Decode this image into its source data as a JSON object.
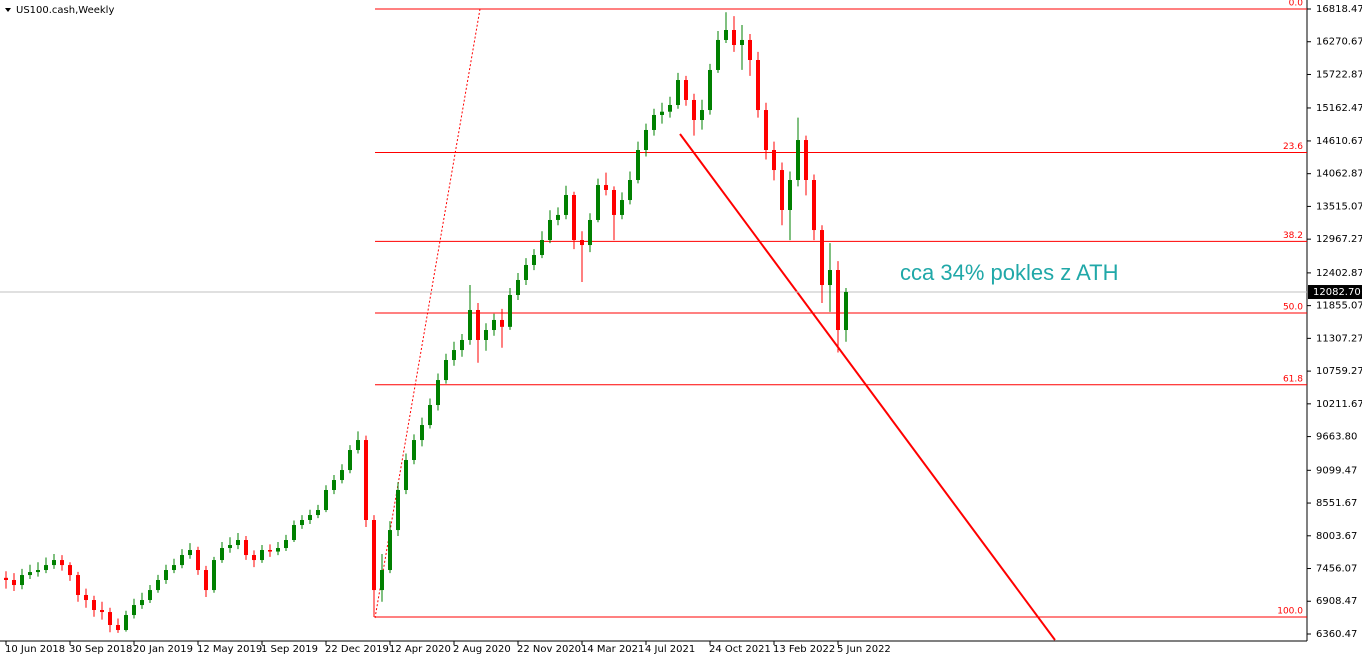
{
  "chart_data": {
    "type": "candlestick",
    "title": "US100.cash,Weekly",
    "annotation": "cca 34% pokles z ATH",
    "categories": [
      "10 Jun 2018",
      null,
      null,
      null,
      null,
      null,
      null,
      null,
      "30 Sep 2018",
      null,
      null,
      null,
      null,
      null,
      null,
      null,
      "20 Jan 2019",
      null,
      null,
      null,
      null,
      null,
      null,
      null,
      "12 May 2019",
      null,
      null,
      null,
      null,
      null,
      null,
      null,
      "1 Sep 2019",
      null,
      null,
      null,
      null,
      null,
      null,
      null,
      "22 Dec 2019",
      null,
      null,
      null,
      null,
      null,
      null,
      null,
      "12 Apr 2020",
      null,
      null,
      null,
      null,
      null,
      null,
      null,
      "2 Aug 2020",
      null,
      null,
      null,
      null,
      null,
      null,
      null,
      "22 Nov 2020",
      null,
      null,
      null,
      null,
      null,
      null,
      null,
      "14 Mar 2021",
      null,
      null,
      null,
      null,
      null,
      null,
      null,
      "4 Jul 2021",
      null,
      null,
      null,
      null,
      null,
      null,
      null,
      "24 Oct 2021",
      null,
      null,
      null,
      null,
      null,
      null,
      null,
      "13 Feb 2022",
      null,
      null,
      null,
      null,
      null,
      null,
      null,
      "5 Jun 2022",
      null
    ],
    "open": [
      7300,
      7264,
      7180,
      7347,
      7397,
      7431,
      7514,
      7598,
      7514,
      7347,
      7013,
      6929,
      6762,
      6728,
      6511,
      6427,
      6678,
      6845,
      6929,
      7096,
      7264,
      7431,
      7514,
      7682,
      7766,
      7431,
      7096,
      7598,
      7799,
      7849,
      7933,
      7682,
      7598,
      7766,
      7740,
      7799,
      7933,
      8184,
      8268,
      8351,
      8435,
      8770,
      8937,
      9104,
      9439,
      9606,
      8268,
      7096,
      7431,
      8100,
      8770,
      9272,
      9606,
      9857,
      10192,
      10610,
      10945,
      11112,
      11280,
      11782,
      11280,
      11447,
      11615,
      11500,
      12033,
      12284,
      12535,
      12702,
      12953,
      13288,
      13372,
      13706,
      12953,
      12869,
      13288,
      13873,
      13790,
      13372,
      13622,
      13957,
      14459,
      14794,
      15045,
      15100,
      15212,
      15630,
      15296,
      14961,
      15128,
      15798,
      16300,
      16467,
      16216,
      16300,
      15965,
      15128,
      14459,
      14124,
      13455,
      13957,
      14626,
      13957,
      13120,
      12200,
      12451,
      11447
    ],
    "high": [
      7410,
      7380,
      7450,
      7520,
      7560,
      7640,
      7700,
      7680,
      7560,
      7400,
      7120,
      7000,
      6900,
      6800,
      6620,
      6750,
      6950,
      7050,
      7180,
      7350,
      7520,
      7620,
      7780,
      7880,
      7820,
      7500,
      7650,
      7900,
      7980,
      8050,
      8000,
      7760,
      7850,
      7860,
      7900,
      8020,
      8260,
      8350,
      8440,
      8520,
      8850,
      9020,
      9200,
      9520,
      9750,
      9680,
      8350,
      7700,
      8250,
      8900,
      9380,
      9700,
      9980,
      10300,
      10720,
      11050,
      11250,
      11380,
      12200,
      11900,
      11560,
      11720,
      11800,
      12150,
      12400,
      12650,
      12800,
      13100,
      13450,
      13500,
      13860,
      13760,
      13100,
      13400,
      13980,
      14080,
      13850,
      13750,
      14100,
      14600,
      14900,
      15150,
      15250,
      15350,
      15750,
      15700,
      15400,
      15300,
      15900,
      16450,
      16765,
      16700,
      16550,
      16400,
      16100,
      15250,
      14600,
      14250,
      14100,
      15000,
      14700,
      14050,
      13200,
      12900,
      12600,
      12150
    ],
    "low": [
      7120,
      7080,
      7110,
      7280,
      7320,
      7380,
      7450,
      7420,
      7250,
      6900,
      6800,
      6650,
      6600,
      6390,
      6380,
      6400,
      6620,
      6780,
      6880,
      7050,
      7200,
      7380,
      7460,
      7620,
      7350,
      6980,
      7050,
      7550,
      7720,
      7780,
      7600,
      7480,
      7550,
      7650,
      7680,
      7750,
      7900,
      8120,
      8200,
      8300,
      8400,
      8700,
      8880,
      9050,
      9380,
      8150,
      6644,
      6900,
      7380,
      8000,
      8700,
      9200,
      9500,
      9800,
      10100,
      10550,
      10850,
      11000,
      11200,
      10900,
      11100,
      11350,
      11150,
      11450,
      11950,
      12200,
      12450,
      12650,
      12900,
      13200,
      13300,
      12800,
      12250,
      12750,
      13250,
      13700,
      12950,
      13300,
      13550,
      13900,
      14350,
      14700,
      14900,
      15000,
      15150,
      15200,
      14700,
      14800,
      15050,
      15750,
      16250,
      16100,
      15800,
      15700,
      15000,
      14300,
      13950,
      13200,
      12950,
      13850,
      13700,
      12950,
      11900,
      11750,
      11070,
      11250
    ],
    "close": [
      7264,
      7180,
      7347,
      7397,
      7431,
      7514,
      7598,
      7514,
      7347,
      7013,
      6929,
      6762,
      6728,
      6511,
      6427,
      6678,
      6845,
      6929,
      7096,
      7264,
      7431,
      7514,
      7682,
      7766,
      7431,
      7096,
      7598,
      7799,
      7849,
      7933,
      7682,
      7598,
      7766,
      7740,
      7799,
      7933,
      8184,
      8268,
      8351,
      8435,
      8770,
      8937,
      9104,
      9439,
      9606,
      8268,
      7096,
      7431,
      8100,
      8770,
      9272,
      9606,
      9857,
      10192,
      10610,
      10945,
      11112,
      11280,
      11782,
      11280,
      11447,
      11615,
      11500,
      12033,
      12284,
      12535,
      12702,
      12953,
      13288,
      13372,
      13706,
      12953,
      12869,
      13288,
      13873,
      13790,
      13372,
      13622,
      13957,
      14459,
      14794,
      15045,
      15100,
      15212,
      15630,
      15296,
      14961,
      15128,
      15798,
      16300,
      16467,
      16216,
      16300,
      15965,
      15128,
      14459,
      14124,
      13455,
      13957,
      14626,
      13957,
      13120,
      12200,
      12451,
      11447,
      12083
    ],
    "up_color": "#008000",
    "down_color": "#ff0000",
    "ylim": [
      6260,
      16969
    ],
    "yticks": [
      6360.47,
      6908.47,
      7456.07,
      8003.67,
      8551.67,
      9099.47,
      {
        "value": 9663.8,
        "label": "9663.80"
      },
      10211.67,
      10759.27,
      11307.27,
      11855.07,
      12402.87,
      12967.27,
      13515.07,
      14062.87,
      14610.67,
      15162.47,
      15722.87,
      16270.67,
      16818.47
    ],
    "current_price": {
      "value": 12082.7,
      "label": "12082.70"
    },
    "fibonacci": [
      {
        "label": "0.0",
        "value": 16818
      },
      {
        "label": "23.6",
        "value": 14417
      },
      {
        "label": "38.2",
        "value": 12931
      },
      {
        "label": "50.0",
        "value": 11731
      },
      {
        "label": "61.8",
        "value": 10531
      },
      {
        "label": "100.0",
        "value": 6644
      }
    ],
    "fib_color": "#ff0000",
    "grid": false
  }
}
